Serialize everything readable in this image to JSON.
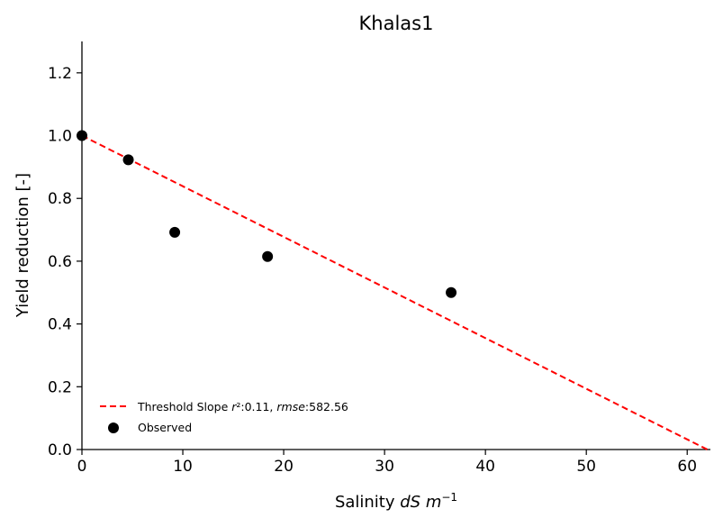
{
  "chart_data": {
    "type": "scatter",
    "title": "Khalas1",
    "xlabel": "Salinity dS m⁻¹",
    "xlabel_parts": {
      "plain": "Salinity ",
      "italic": "dS m",
      "sup": "−1"
    },
    "ylabel": "Yield reduction [-]",
    "xlim": [
      0,
      62.3
    ],
    "ylim": [
      0,
      1.3
    ],
    "xticks": [
      0,
      10,
      20,
      30,
      40,
      50,
      60
    ],
    "yticks": [
      0.0,
      0.2,
      0.4,
      0.6,
      0.8,
      1.0,
      1.2
    ],
    "xtick_labels": [
      "0",
      "10",
      "20",
      "30",
      "40",
      "50",
      "60"
    ],
    "ytick_labels": [
      "0.0",
      "0.2",
      "0.4",
      "0.6",
      "0.8",
      "1.0",
      "1.2"
    ],
    "grid": false,
    "legend_position": "lower-left",
    "series": [
      {
        "name": "Threshold Slope r²:0.11, rmse:582.56",
        "legend_parts": {
          "t1": "Threshold Slope ",
          "t2": "r",
          "t3": "²:0.11, ",
          "t4": "rmse",
          "t5": ":582.56"
        },
        "kind": "line",
        "style": "dashed",
        "color": "#ff0000",
        "x": [
          0,
          62
        ],
        "y": [
          1.0,
          0.0
        ]
      },
      {
        "name": "Observed",
        "kind": "scatter",
        "color": "#000000",
        "x": [
          0,
          4.6,
          9.2,
          18.4,
          36.6
        ],
        "y": [
          1.0,
          0.923,
          0.692,
          0.615,
          0.5
        ]
      }
    ]
  }
}
